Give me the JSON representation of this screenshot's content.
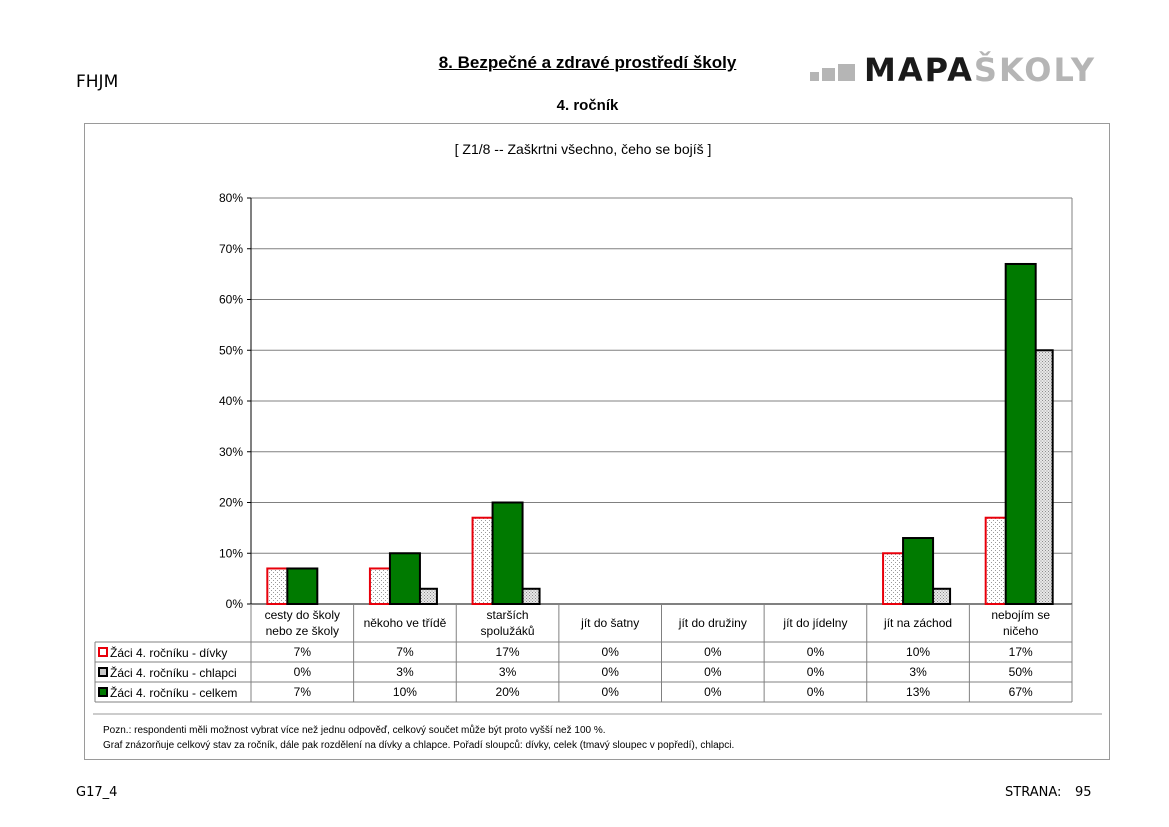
{
  "header": {
    "school_code": "FHJM",
    "title": "8. Bezpečné a zdravé prostředí školy",
    "subtitle": "4. ročník",
    "logo_dark": "MAPA",
    "logo_light": "ŠKOLY"
  },
  "footer": {
    "page_code": "G17_4",
    "page_label": "STRANA:",
    "page_number": "95"
  },
  "notes": [
    "Pozn.: respondenti měli možnost vybrat  více než jednu odpověď, celkový součet může být proto vyšší než 100 %.",
    "Graf znázorňuje celkový stav za ročník, dále pak rozdělení na dívky a chlapce. Pořadí sloupců: dívky, celek (tmavý sloupec v popředí), chlapci."
  ],
  "colors": {
    "girls_border": "#e8000b",
    "boys_fill": "#c8c8c8",
    "total_fill": "#007a00",
    "grid": "#808080"
  },
  "chart_data": {
    "type": "bar",
    "title": "[ Z1/8 -- Zaškrtni všechno, čeho se bojíš ]",
    "categories": [
      [
        "cesty do školy",
        "nebo ze školy"
      ],
      [
        "někoho ve třídě"
      ],
      [
        "starších",
        "spolužáků"
      ],
      [
        "jít do šatny"
      ],
      [
        "jít do družiny"
      ],
      [
        "jít do jídelny"
      ],
      [
        "jít na záchod"
      ],
      [
        "nebojím se",
        "ničeho"
      ]
    ],
    "y_ticks": [
      "0%",
      "10%",
      "20%",
      "30%",
      "40%",
      "50%",
      "60%",
      "70%",
      "80%"
    ],
    "ylim": [
      0,
      80
    ],
    "grid": true,
    "legend": "data-table",
    "series": [
      {
        "name": "Žáci 4. ročníku - dívky",
        "values": [
          7,
          7,
          17,
          0,
          0,
          0,
          10,
          17
        ],
        "labels": [
          "7%",
          "7%",
          "17%",
          "0%",
          "0%",
          "0%",
          "10%",
          "17%"
        ]
      },
      {
        "name": "Žáci 4. ročníku - chlapci",
        "values": [
          0,
          3,
          3,
          0,
          0,
          0,
          3,
          50
        ],
        "labels": [
          "0%",
          "3%",
          "3%",
          "0%",
          "0%",
          "0%",
          "3%",
          "50%"
        ]
      },
      {
        "name": "Žáci 4. ročníku - celkem",
        "values": [
          7,
          10,
          20,
          0,
          0,
          0,
          13,
          67
        ],
        "labels": [
          "7%",
          "10%",
          "20%",
          "0%",
          "0%",
          "0%",
          "13%",
          "67%"
        ]
      }
    ]
  }
}
